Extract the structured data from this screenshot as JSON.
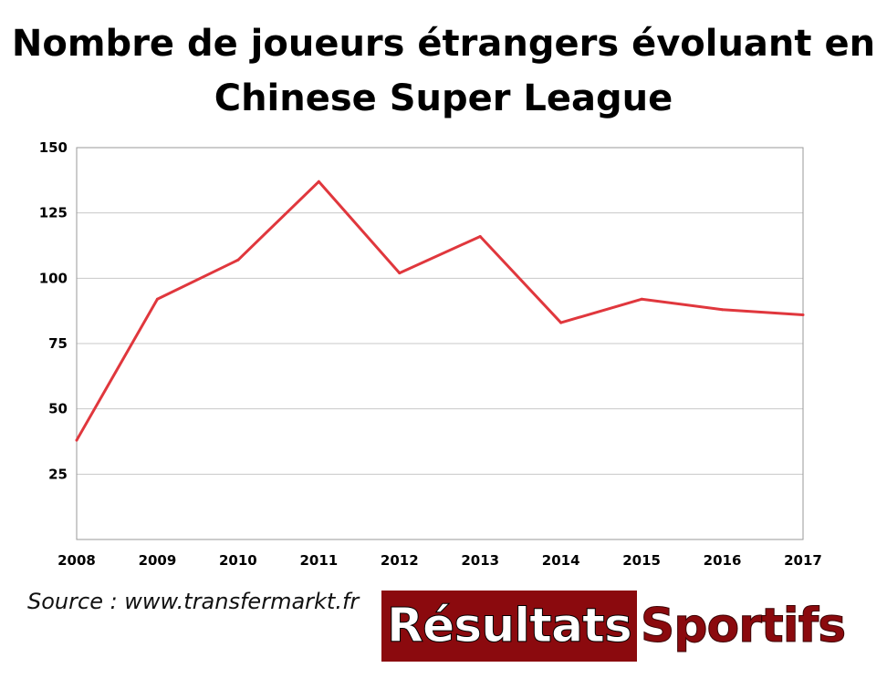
{
  "title_line1": "Nombre de joueurs étrangers évoluant en",
  "title_line2": "Chinese Super League",
  "source": "Source : www.transfermarkt.fr",
  "logo": {
    "part1": "Résultats",
    "part2": "Sportifs",
    "colors": {
      "primary": "#8b0a0e",
      "text_on_primary": "#ffffff"
    }
  },
  "chart_data": {
    "type": "line",
    "title": "Nombre de joueurs étrangers évoluant en Chinese Super League",
    "xlabel": "",
    "ylabel": "",
    "categories": [
      "2008",
      "2009",
      "2010",
      "2011",
      "2012",
      "2013",
      "2014",
      "2015",
      "2016",
      "2017"
    ],
    "series": [
      {
        "values": [
          38,
          92,
          107,
          137,
          102,
          116,
          83,
          92,
          88,
          86
        ],
        "color": "#e0373d"
      }
    ],
    "ylim": [
      0,
      150
    ],
    "yticks": [
      25,
      50,
      75,
      100,
      125,
      150
    ],
    "grid": true,
    "legend": "none"
  }
}
